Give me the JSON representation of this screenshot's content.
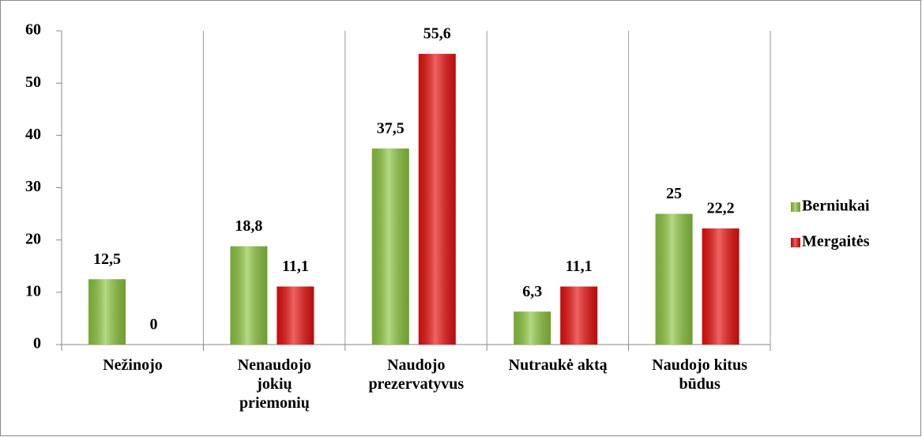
{
  "chart_data": {
    "type": "bar",
    "categories": [
      "Nežinojo",
      "Nenaudojo\njokių\npriemonių",
      "Naudojo\nprezervatyvus",
      "Nutraukė aktą",
      "Naudojo kitus\nbūdus"
    ],
    "series": [
      {
        "name": "Berniukai",
        "color": "#8cc63e",
        "values": [
          12.5,
          18.8,
          37.5,
          6.3,
          25
        ],
        "value_labels": [
          "12,5",
          "18,8",
          "37,5",
          "6,3",
          "25"
        ]
      },
      {
        "name": "Mergaitės",
        "color": "#e8100e",
        "values": [
          0,
          11.1,
          55.6,
          11.1,
          22.2
        ],
        "value_labels": [
          "0",
          "11,1",
          "55,6",
          "11,1",
          "22,2"
        ]
      }
    ],
    "ylim": [
      0,
      60
    ],
    "yticks": [
      0,
      10,
      20,
      30,
      40,
      50,
      60
    ],
    "legend": "right"
  }
}
